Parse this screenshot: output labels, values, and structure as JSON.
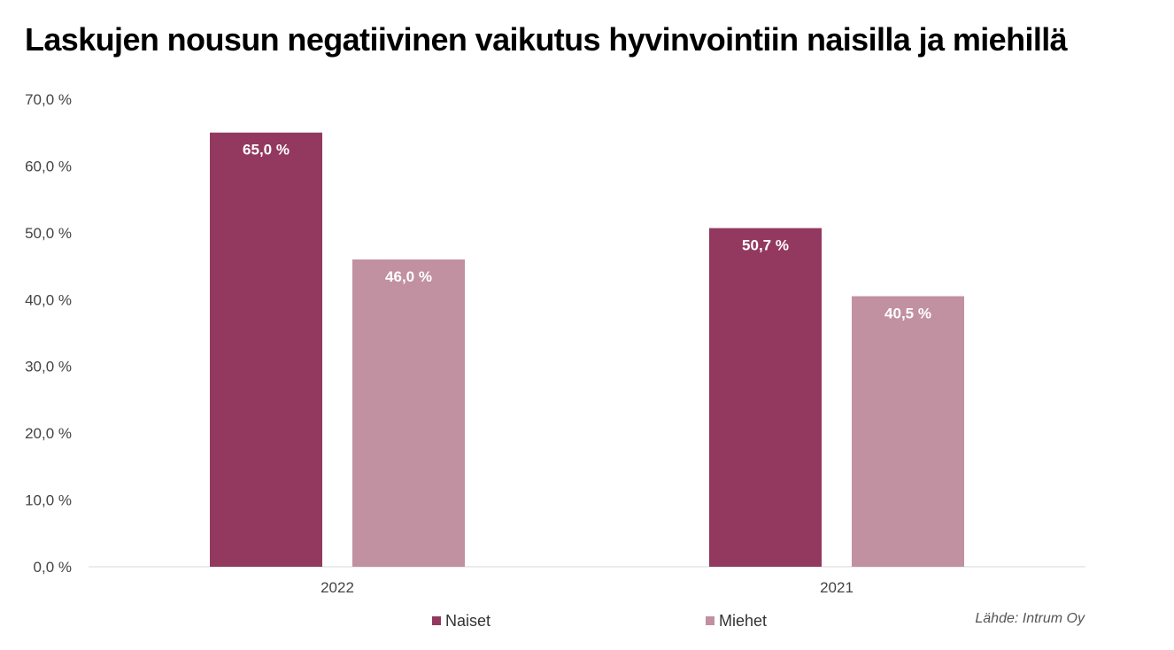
{
  "chart_data": {
    "type": "bar",
    "title": "Laskujen nousun negatiivinen vaikutus hyvinvointiin naisilla ja miehillä",
    "categories": [
      "2022",
      "2021"
    ],
    "series": [
      {
        "name": "Naiset",
        "values": [
          65.0,
          50.7
        ],
        "labels": [
          "65,0 %",
          "50,7 %"
        ],
        "color": "#93395F"
      },
      {
        "name": "Miehet",
        "values": [
          46.0,
          40.5
        ],
        "labels": [
          "46,0 %",
          "40,5 %"
        ],
        "color": "#C190A1"
      }
    ],
    "ylim": [
      0,
      70
    ],
    "yticks": [
      0,
      10,
      20,
      30,
      40,
      50,
      60,
      70
    ],
    "ytick_labels": [
      "0,0 %",
      "10,0 %",
      "20,0 %",
      "30,0 %",
      "40,0 %",
      "50,0 %",
      "60,0 %",
      "70,0 %"
    ],
    "xlabel": "",
    "ylabel": "",
    "grid": false,
    "legend": "bottom",
    "source": "Lähde: Intrum Oy"
  },
  "colors": {
    "axis": "#d9d9d9",
    "tick_text": "#444444",
    "label_text": "#ffffff"
  }
}
